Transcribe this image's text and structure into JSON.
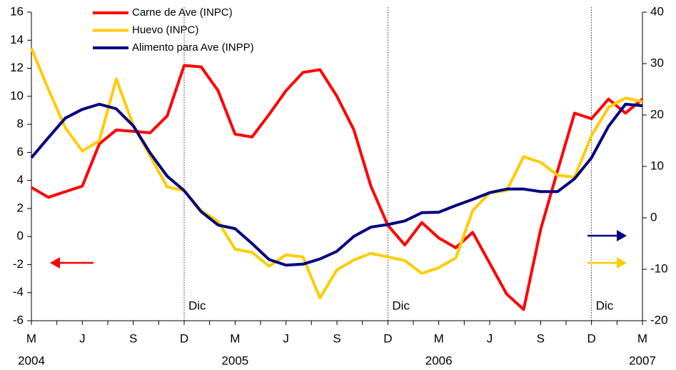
{
  "chart_data": {
    "type": "line",
    "categories": [
      "M",
      null,
      null,
      "J",
      null,
      null,
      "S",
      null,
      null,
      "D",
      null,
      null,
      "M",
      null,
      null,
      "J",
      null,
      null,
      "S",
      null,
      null,
      "D",
      null,
      null,
      "M",
      null,
      null,
      "J",
      null,
      null,
      "S",
      null,
      null,
      "D",
      null,
      null,
      "M"
    ],
    "years": [
      "2004",
      null,
      null,
      null,
      null,
      null,
      null,
      null,
      null,
      null,
      null,
      null,
      "2005",
      null,
      null,
      null,
      null,
      null,
      null,
      null,
      null,
      null,
      null,
      null,
      "2006",
      null,
      null,
      null,
      null,
      null,
      null,
      null,
      null,
      null,
      null,
      null,
      "2007"
    ],
    "series": [
      {
        "name": "Carne de Ave (INPC)",
        "color": "#ff0000",
        "axis": "y",
        "values": [
          3.5,
          2.8,
          3.2,
          3.6,
          6.6,
          7.6,
          7.5,
          7.4,
          8.6,
          12.2,
          12.1,
          10.4,
          7.3,
          7.1,
          8.7,
          10.4,
          11.7,
          11.9,
          10.0,
          7.6,
          3.6,
          0.8,
          -0.6,
          1.0,
          -0.1,
          -0.8,
          0.3,
          -1.9,
          -4.1,
          -5.2,
          0.5,
          4.7,
          8.8,
          8.4,
          9.8,
          8.8,
          9.8
        ]
      },
      {
        "name": "Huevo (INPC)",
        "color": "#ffcc00",
        "axis": "y2",
        "values": [
          33,
          25,
          17.5,
          13,
          15,
          27,
          18,
          12,
          6,
          5.3,
          1.4,
          -0.7,
          -6.1,
          -6.7,
          -9.4,
          -7.2,
          -7.6,
          -15.6,
          -10.1,
          -8.2,
          -6.9,
          -7.6,
          -8.3,
          -10.8,
          -9.7,
          -7.8,
          1.4,
          4.9,
          5.3,
          11.9,
          10.8,
          8.3,
          7.9,
          16,
          21.5,
          23.3,
          22.6
        ]
      },
      {
        "name": "Alimento para Ave (INPP)",
        "color": "#000080",
        "axis": "y2",
        "values": [
          11.7,
          15.6,
          19.4,
          21.1,
          22.1,
          21.2,
          17.9,
          12.6,
          8.1,
          5.3,
          1.2,
          -1.4,
          -2.1,
          -5,
          -8.1,
          -9.2,
          -9,
          -8,
          -6.5,
          -3.6,
          -1.8,
          -1.3,
          -0.6,
          1,
          1.1,
          2.4,
          3.6,
          4.9,
          5.6,
          5.6,
          5.1,
          5.1,
          7.6,
          11.7,
          17.8,
          22.1,
          21.8
        ]
      }
    ],
    "ylim": [
      -6,
      16
    ],
    "yticks": [
      -6,
      -4,
      -2,
      0,
      2,
      4,
      6,
      8,
      10,
      12,
      14,
      16
    ],
    "y2lim": [
      -20,
      40
    ],
    "y2ticks": [
      -20,
      -10,
      0,
      10,
      20,
      30,
      40
    ],
    "annotations": [
      {
        "label": "Dic",
        "x": 9
      },
      {
        "label": "Dic",
        "x": 21
      },
      {
        "label": "Dic",
        "x": 33
      }
    ]
  }
}
